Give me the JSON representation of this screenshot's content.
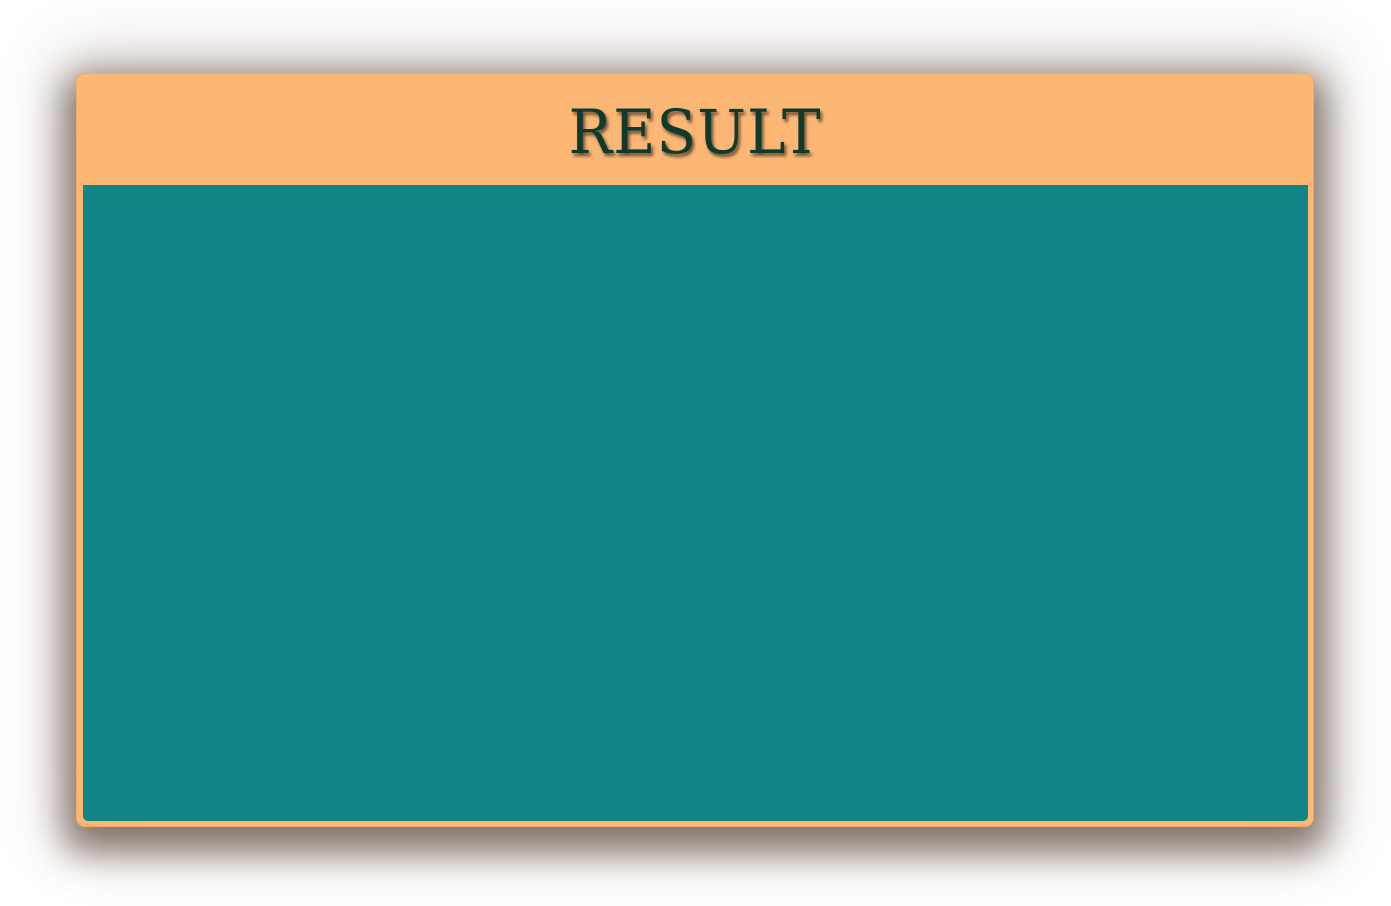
{
  "panel": {
    "title": "RESULT",
    "content": ""
  },
  "colors": {
    "frame": "#fdb775",
    "body": "#118485",
    "title_text": "#0f3b2e",
    "background": "#ffffff"
  }
}
